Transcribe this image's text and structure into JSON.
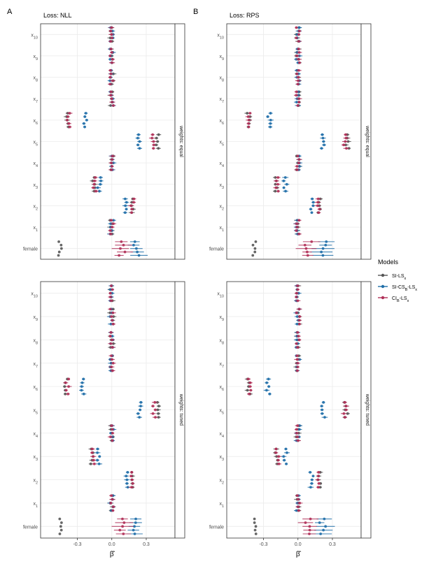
{
  "chart_data": {
    "type": "scatter",
    "y_categories": [
      "x10",
      "x9",
      "x8",
      "x7",
      "x6",
      "x5",
      "x4",
      "x3",
      "x2",
      "x1",
      "female"
    ],
    "y_category_labels": [
      {
        "base": "x",
        "sub": "10"
      },
      {
        "base": "x",
        "sub": "9"
      },
      {
        "base": "x",
        "sub": "8"
      },
      {
        "base": "x",
        "sub": "7"
      },
      {
        "base": "x",
        "sub": "6"
      },
      {
        "base": "x",
        "sub": "5"
      },
      {
        "base": "x",
        "sub": "4"
      },
      {
        "base": "x",
        "sub": "3"
      },
      {
        "base": "x",
        "sub": "2"
      },
      {
        "base": "x",
        "sub": "1"
      },
      {
        "base": "female",
        "sub": ""
      }
    ],
    "x_ticks": [
      -0.3,
      0.0,
      0.3
    ],
    "x_tick_labels": [
      "-0.3",
      "0.0",
      "0.3"
    ],
    "xlim": [
      -0.62,
      0.55
    ],
    "xlabel": "β̂",
    "legend": {
      "title": "Models",
      "entries": [
        {
          "base": "SI-LS",
          "sub": "x"
        },
        {
          "base": "SI-CS",
          "sub": "B",
          "base2": "-LS",
          "sub2": "x"
        },
        {
          "base": "CI",
          "sub": "B",
          "base2": "-LS",
          "sub2": "x"
        }
      ],
      "colors": [
        "#555555",
        "#1f6ea8",
        "#b03058"
      ],
      "placement": "right"
    },
    "strip_labels": [
      "weights: equal",
      "weights: tuned"
    ],
    "panels": [
      {
        "tag": "A",
        "title": "Loss: NLL",
        "facets": [
          {
            "strip": "weights: equal",
            "series": [
              {
                "values": [
                  0.0,
                  0.0,
                  0.0,
                  0.0,
                  -0.38,
                  0.4,
                  0.0,
                  -0.16,
                  0.18,
                  0.0,
                  -0.45
                ]
              },
              {
                "values": [
                  0.0,
                  0.0,
                  0.0,
                  0.0,
                  -0.23,
                  0.23,
                  0.0,
                  -0.11,
                  0.12,
                  0.0,
                  0.2
                ]
              },
              {
                "values": [
                  0.0,
                  0.0,
                  0.0,
                  0.0,
                  -0.38,
                  0.36,
                  0.0,
                  -0.15,
                  0.18,
                  0.0,
                  0.1
                ]
              }
            ]
          },
          {
            "strip": "weights: tuned",
            "series": [
              {
                "values": [
                  0.0,
                  0.0,
                  0.0,
                  0.0,
                  -0.4,
                  0.4,
                  0.0,
                  -0.17,
                  0.18,
                  0.0,
                  -0.45
                ]
              },
              {
                "values": [
                  0.0,
                  0.0,
                  0.0,
                  0.0,
                  -0.25,
                  0.24,
                  0.0,
                  -0.12,
                  0.13,
                  0.0,
                  0.22
                ]
              },
              {
                "values": [
                  0.0,
                  0.0,
                  0.0,
                  0.0,
                  -0.39,
                  0.37,
                  0.0,
                  -0.16,
                  0.18,
                  0.0,
                  0.1
                ]
              }
            ]
          }
        ]
      },
      {
        "tag": "B",
        "title": "Loss: RPS",
        "facets": [
          {
            "strip": "weights: equal",
            "series": [
              {
                "values": [
                  0.0,
                  0.0,
                  0.0,
                  0.0,
                  -0.43,
                  0.43,
                  0.0,
                  -0.19,
                  0.19,
                  0.0,
                  -0.38
                ]
              },
              {
                "values": [
                  0.0,
                  0.0,
                  0.0,
                  0.0,
                  -0.25,
                  0.22,
                  0.0,
                  -0.11,
                  0.12,
                  0.0,
                  0.21
                ]
              },
              {
                "values": [
                  0.0,
                  0.0,
                  0.0,
                  0.0,
                  -0.42,
                  0.41,
                  0.0,
                  -0.18,
                  0.18,
                  0.0,
                  0.1
                ]
              }
            ]
          },
          {
            "strip": "weights: tuned",
            "series": [
              {
                "values": [
                  0.0,
                  0.0,
                  0.0,
                  0.0,
                  -0.43,
                  0.42,
                  0.0,
                  -0.19,
                  0.19,
                  0.0,
                  -0.38
                ]
              },
              {
                "values": [
                  0.0,
                  0.0,
                  0.0,
                  0.0,
                  -0.26,
                  0.22,
                  0.0,
                  -0.11,
                  0.12,
                  0.0,
                  0.21
                ]
              },
              {
                "values": [
                  0.0,
                  0.0,
                  0.0,
                  0.0,
                  -0.42,
                  0.41,
                  0.0,
                  -0.18,
                  0.18,
                  0.0,
                  0.1
                ]
              }
            ]
          }
        ]
      }
    ],
    "grid": true
  }
}
